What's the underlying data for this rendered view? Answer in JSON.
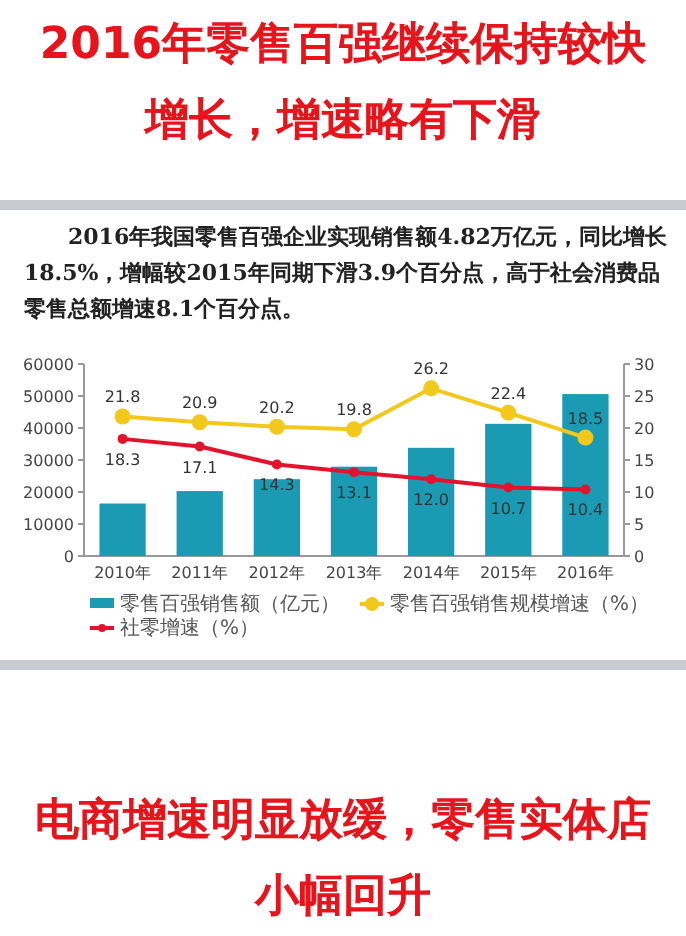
{
  "chart_data": {
    "type": "bar",
    "title": "2016年零售百强继续保持较快增长，增速略有下滑",
    "subtitle": "2016年我国零售百强企业实现销售额4.82万亿元，同比增长18.5%，增幅较2015年同期下滑3.9个百分点，高于社会消费品零售总额增速8.1个百分点。",
    "annotations": [
      "电商增速明显放缓，零售实体店小幅回升"
    ],
    "categories": [
      "2010年",
      "2011年",
      "2012年",
      "2013年",
      "2014年",
      "2015年",
      "2016年"
    ],
    "series": [
      {
        "name": "零售百强销售额（亿元）",
        "color": "#1b9bb3",
        "values": [
          16400,
          20300,
          24000,
          27900,
          33800,
          41300,
          50600
        ]
      },
      {
        "name": "零售百强销售规模增速（%）",
        "type": "line",
        "axis": "y2",
        "color": "#f2c81c",
        "marker": "circle",
        "values": [
          21.8,
          20.9,
          20.2,
          19.8,
          26.2,
          22.4,
          18.5
        ],
        "value_labels": [
          "21.8",
          "20.9",
          "20.2",
          "19.8",
          "26.2",
          "22.4",
          "18.5"
        ]
      },
      {
        "name": "社零增速（%）",
        "type": "line",
        "axis": "y2",
        "color": "#e3132e",
        "marker": "circle",
        "values": [
          18.3,
          17.1,
          14.3,
          13.1,
          12.0,
          10.7,
          10.4
        ],
        "value_labels": [
          "18.3",
          "17.1",
          "14.3",
          "13.1",
          "12.0",
          "10.7",
          "10.4"
        ]
      }
    ],
    "ylim": [
      0,
      60000
    ],
    "yticks": [
      0,
      10000,
      20000,
      30000,
      40000,
      50000,
      60000
    ],
    "y2lim": [
      0,
      30
    ],
    "y2ticks": [
      0,
      5,
      10,
      15,
      20,
      25,
      30
    ],
    "legend": "bottom"
  }
}
